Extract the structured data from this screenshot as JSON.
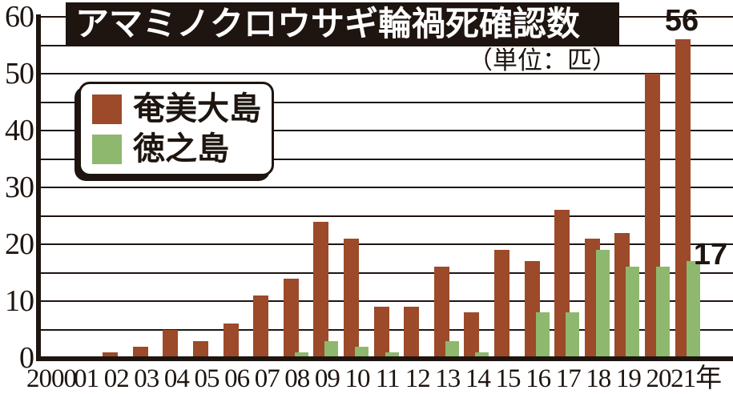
{
  "title": "アマミノクロウサギ輪禍死確認数",
  "unit_label": "（単位：匹）",
  "colors": {
    "ink": "#1e1510",
    "amami_bar": "#9c4a29",
    "tokunoshima_bar": "#8eb86e",
    "background": "#ffffff",
    "title_text": "#ffffff"
  },
  "chart_data": {
    "type": "bar",
    "title": "アマミノクロウサギ輪禍死確認数",
    "unit": "単位：匹",
    "categories": [
      "2000",
      "01",
      "02",
      "03",
      "04",
      "05",
      "06",
      "07",
      "08",
      "09",
      "10",
      "11",
      "12",
      "13",
      "14",
      "15",
      "16",
      "17",
      "18",
      "19",
      "20",
      "21年"
    ],
    "series": [
      {
        "name": "奄美大島",
        "color": "#9c4a29",
        "values": [
          0,
          0,
          1,
          2,
          5,
          3,
          6,
          11,
          14,
          24,
          21,
          9,
          9,
          16,
          8,
          19,
          17,
          26,
          21,
          22,
          50,
          56
        ]
      },
      {
        "name": "徳之島",
        "color": "#8eb86e",
        "values": [
          0,
          0,
          0,
          0,
          0,
          0,
          0,
          0,
          1,
          3,
          2,
          1,
          0,
          3,
          1,
          0,
          8,
          8,
          19,
          16,
          16,
          17
        ]
      }
    ],
    "ylim": [
      0,
      60
    ],
    "yticks": [
      0,
      10,
      20,
      30,
      40,
      50,
      60
    ],
    "gridline_step": 5,
    "grid": true,
    "legend_position": "upper-left",
    "annotations": [
      {
        "series": "奄美大島",
        "category": "21年",
        "text": "56"
      },
      {
        "series": "徳之島",
        "category": "21年",
        "text": "17"
      }
    ]
  }
}
